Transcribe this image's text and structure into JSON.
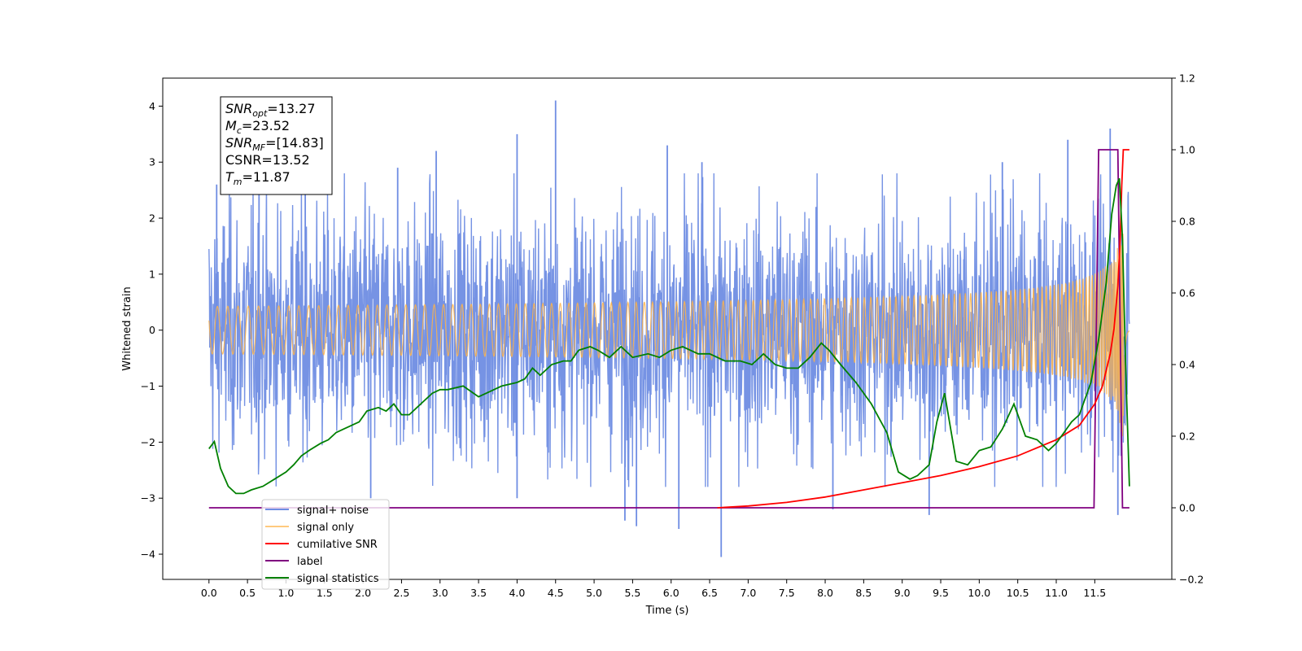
{
  "chart_data": {
    "type": "line",
    "xlabel": "Time (s)",
    "ylabel": "Whitened strain",
    "xlim": [
      -0.6,
      12.5
    ],
    "ylim": [
      -4.45,
      4.5
    ],
    "ylim_right": [
      -0.2,
      1.2
    ],
    "x_ticks": [
      0.0,
      0.5,
      1.0,
      1.5,
      2.0,
      2.5,
      3.0,
      3.5,
      4.0,
      4.5,
      5.0,
      5.5,
      6.0,
      6.5,
      7.0,
      7.5,
      8.0,
      8.5,
      9.0,
      9.5,
      10.0,
      10.5,
      11.0,
      11.5
    ],
    "x_tick_labels": [
      "0.0",
      "0.5",
      "1.0",
      "1.5",
      "2.0",
      "2.5",
      "3.0",
      "3.5",
      "4.0",
      "4.5",
      "5.0",
      "5.5",
      "6.0",
      "6.5",
      "7.0",
      "7.5",
      "8.0",
      "8.5",
      "9.0",
      "9.5",
      "10.0",
      "10.5",
      "11.0",
      "11.5"
    ],
    "y_ticks": [
      -4,
      -3,
      -2,
      -1,
      0,
      1,
      2,
      3,
      4
    ],
    "y_tick_labels": [
      "−4",
      "−3",
      "−2",
      "−1",
      "0",
      "1",
      "2",
      "3",
      "4"
    ],
    "y2_ticks": [
      -0.2,
      0.0,
      0.2,
      0.4,
      0.6,
      0.8,
      1.0,
      1.2
    ],
    "y2_tick_labels": [
      "−0.2",
      "0.0",
      "0.2",
      "0.4",
      "0.6",
      "0.8",
      "1.0",
      "1.2"
    ],
    "grid": false,
    "legend_position": "lower-left",
    "annotation_box": {
      "lines": [
        {
          "base": "SNR",
          "sub": "opt",
          "rest": "=13.27"
        },
        {
          "base": "M",
          "sub": "c",
          "rest": "=23.52"
        },
        {
          "base": "SNR",
          "sub": "MF",
          "rest": "=[14.83]"
        },
        {
          "base": "CSNR",
          "sub": "",
          "rest": "=13.52"
        },
        {
          "base": "T",
          "sub": "m",
          "rest": "=11.87"
        }
      ]
    },
    "series": [
      {
        "name": "signal+ noise",
        "color": "#6f8de3",
        "axis": "left",
        "style": "dense noise envelope",
        "x_range": [
          0.0,
          11.95
        ],
        "typical_amplitude": 2.0,
        "spikes": [
          {
            "x": 0.1,
            "y": 2.6
          },
          {
            "x": 0.65,
            "y": 2.9
          },
          {
            "x": 1.25,
            "y": 3.0
          },
          {
            "x": 2.45,
            "y": 2.9
          },
          {
            "x": 2.95,
            "y": 3.2
          },
          {
            "x": 4.0,
            "y": 3.5
          },
          {
            "x": 4.5,
            "y": 4.1
          },
          {
            "x": 5.95,
            "y": 3.3
          },
          {
            "x": 6.4,
            "y": 3.0
          },
          {
            "x": 10.3,
            "y": 3.0
          },
          {
            "x": 11.15,
            "y": 3.4
          },
          {
            "x": 11.7,
            "y": 3.6
          },
          {
            "x": 2.1,
            "y": -3.0
          },
          {
            "x": 4.0,
            "y": -3.0
          },
          {
            "x": 5.4,
            "y": -3.4
          },
          {
            "x": 5.55,
            "y": -3.5
          },
          {
            "x": 6.1,
            "y": -3.55
          },
          {
            "x": 6.65,
            "y": -4.05
          },
          {
            "x": 9.35,
            "y": -3.3
          },
          {
            "x": 8.1,
            "y": -3.2
          },
          {
            "x": 11.8,
            "y": -3.3
          }
        ]
      },
      {
        "name": "signal only",
        "color": "#ffb347",
        "axis": "left",
        "style": "chirp",
        "x_range": [
          0.0,
          11.95
        ],
        "merger_time": 11.87,
        "peak_amplitude": 2.1
      },
      {
        "name": "cumilative SNR",
        "color": "#ff0000",
        "axis": "right",
        "x": [
          6.6,
          7.0,
          7.5,
          8.0,
          8.5,
          9.0,
          9.5,
          10.0,
          10.5,
          11.0,
          11.3,
          11.5,
          11.6,
          11.7,
          11.75,
          11.8,
          11.83,
          11.85,
          11.87,
          11.9,
          11.95
        ],
        "y": [
          0.0,
          0.005,
          0.015,
          0.03,
          0.05,
          0.07,
          0.09,
          0.115,
          0.145,
          0.19,
          0.23,
          0.29,
          0.34,
          0.43,
          0.5,
          0.62,
          0.75,
          0.9,
          1.0,
          1.0,
          1.0
        ]
      },
      {
        "name": "label",
        "color": "#800080",
        "axis": "right",
        "x": [
          0.0,
          11.49,
          11.55,
          11.8,
          11.86,
          11.95
        ],
        "y": [
          0.0,
          0.0,
          1.0,
          1.0,
          0.0,
          0.0
        ]
      },
      {
        "name": "signal statistics",
        "color": "#008000",
        "axis": "right",
        "x": [
          0.0,
          0.07,
          0.15,
          0.25,
          0.35,
          0.45,
          0.55,
          0.7,
          0.85,
          1.0,
          1.1,
          1.2,
          1.3,
          1.45,
          1.55,
          1.65,
          1.75,
          1.85,
          1.95,
          2.05,
          2.2,
          2.3,
          2.4,
          2.5,
          2.6,
          2.8,
          2.9,
          3.0,
          3.1,
          3.3,
          3.5,
          3.6,
          3.8,
          4.0,
          4.1,
          4.2,
          4.3,
          4.45,
          4.6,
          4.7,
          4.8,
          4.95,
          5.05,
          5.2,
          5.35,
          5.5,
          5.7,
          5.85,
          6.0,
          6.15,
          6.35,
          6.5,
          6.7,
          6.9,
          7.05,
          7.2,
          7.35,
          7.5,
          7.65,
          7.8,
          7.95,
          8.05,
          8.2,
          8.4,
          8.6,
          8.8,
          8.95,
          9.1,
          9.2,
          9.35,
          9.45,
          9.55,
          9.7,
          9.85,
          10.0,
          10.15,
          10.3,
          10.45,
          10.6,
          10.75,
          10.9,
          11.0,
          11.1,
          11.2,
          11.3,
          11.45,
          11.55,
          11.65,
          11.72,
          11.78,
          11.82,
          11.86,
          11.9,
          11.95
        ],
        "y": [
          0.165,
          0.185,
          0.11,
          0.06,
          0.04,
          0.04,
          0.05,
          0.06,
          0.08,
          0.1,
          0.12,
          0.145,
          0.16,
          0.18,
          0.19,
          0.21,
          0.22,
          0.23,
          0.24,
          0.27,
          0.28,
          0.27,
          0.29,
          0.26,
          0.26,
          0.3,
          0.32,
          0.33,
          0.33,
          0.34,
          0.31,
          0.32,
          0.34,
          0.35,
          0.36,
          0.39,
          0.37,
          0.4,
          0.41,
          0.41,
          0.44,
          0.45,
          0.44,
          0.42,
          0.45,
          0.42,
          0.43,
          0.42,
          0.44,
          0.45,
          0.43,
          0.43,
          0.41,
          0.41,
          0.4,
          0.43,
          0.4,
          0.39,
          0.39,
          0.42,
          0.46,
          0.44,
          0.4,
          0.35,
          0.29,
          0.21,
          0.1,
          0.08,
          0.09,
          0.12,
          0.24,
          0.32,
          0.13,
          0.12,
          0.16,
          0.17,
          0.22,
          0.29,
          0.2,
          0.19,
          0.16,
          0.18,
          0.21,
          0.24,
          0.26,
          0.35,
          0.47,
          0.63,
          0.82,
          0.9,
          0.92,
          0.75,
          0.4,
          0.06
        ]
      }
    ]
  }
}
